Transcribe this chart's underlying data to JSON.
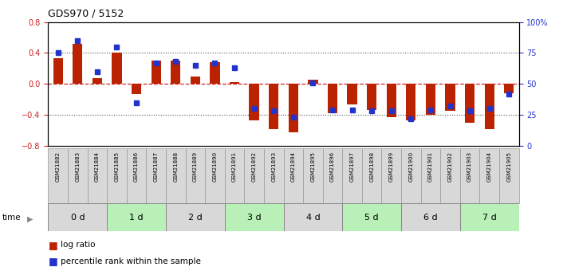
{
  "title": "GDS970 / 5152",
  "samples": [
    "GSM21882",
    "GSM21883",
    "GSM21884",
    "GSM21885",
    "GSM21886",
    "GSM21887",
    "GSM21888",
    "GSM21889",
    "GSM21890",
    "GSM21891",
    "GSM21892",
    "GSM21893",
    "GSM21894",
    "GSM21895",
    "GSM21896",
    "GSM21897",
    "GSM21898",
    "GSM21899",
    "GSM21900",
    "GSM21901",
    "GSM21902",
    "GSM21903",
    "GSM21904",
    "GSM21905"
  ],
  "log_ratio": [
    0.33,
    0.52,
    0.07,
    0.4,
    -0.13,
    0.3,
    0.3,
    0.1,
    0.28,
    0.02,
    -0.47,
    -0.58,
    -0.63,
    0.05,
    -0.38,
    -0.27,
    -0.34,
    -0.43,
    -0.47,
    -0.4,
    -0.35,
    -0.5,
    -0.58,
    -0.12
  ],
  "percentile": [
    75,
    85,
    60,
    80,
    35,
    67,
    68,
    65,
    67,
    63,
    30,
    28,
    23,
    51,
    29,
    29,
    28,
    28,
    22,
    29,
    32,
    28,
    30,
    42
  ],
  "groups": [
    {
      "label": "0 d",
      "start": 0,
      "end": 3,
      "color": "#d8d8d8"
    },
    {
      "label": "1 d",
      "start": 3,
      "end": 6,
      "color": "#b8f0b8"
    },
    {
      "label": "2 d",
      "start": 6,
      "end": 9,
      "color": "#d8d8d8"
    },
    {
      "label": "3 d",
      "start": 9,
      "end": 12,
      "color": "#b8f0b8"
    },
    {
      "label": "4 d",
      "start": 12,
      "end": 15,
      "color": "#d8d8d8"
    },
    {
      "label": "5 d",
      "start": 15,
      "end": 18,
      "color": "#b8f0b8"
    },
    {
      "label": "6 d",
      "start": 18,
      "end": 21,
      "color": "#d8d8d8"
    },
    {
      "label": "7 d",
      "start": 21,
      "end": 24,
      "color": "#b8f0b8"
    }
  ],
  "sample_box_color": "#d8d8d8",
  "bar_color": "#bb2200",
  "percentile_color": "#2233cc",
  "ylim": [
    -0.8,
    0.8
  ],
  "yticks": [
    -0.8,
    -0.4,
    0.0,
    0.4,
    0.8
  ],
  "y2ticks": [
    0,
    25,
    50,
    75,
    100
  ],
  "hline_color": "#cc2222",
  "dotted_color": "#555555",
  "bar_width": 0.5,
  "percentile_marker_size": 5
}
